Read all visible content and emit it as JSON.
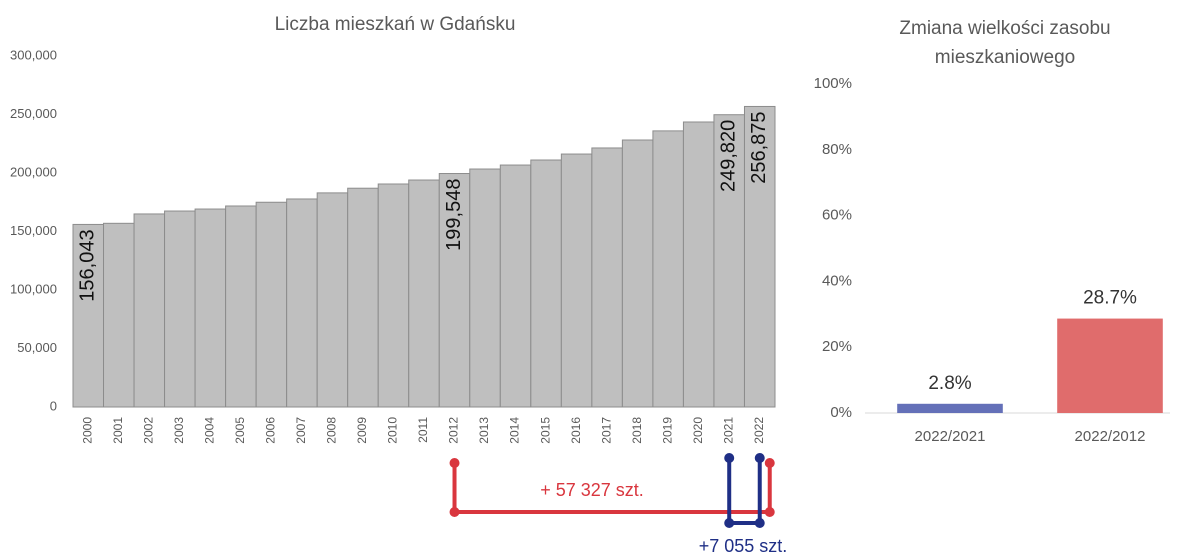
{
  "chart_data": [
    {
      "type": "bar",
      "title": "Liczba mieszkań w Gdańsku",
      "categories": [
        "2000",
        "2001",
        "2002",
        "2003",
        "2004",
        "2005",
        "2006",
        "2007",
        "2008",
        "2009",
        "2010",
        "2011",
        "2012",
        "2013",
        "2014",
        "2015",
        "2016",
        "2017",
        "2018",
        "2019",
        "2020",
        "2021",
        "2022"
      ],
      "values": [
        156043,
        157000,
        165000,
        167500,
        169200,
        171800,
        175000,
        177800,
        183000,
        187000,
        190600,
        194000,
        199548,
        203400,
        206800,
        211100,
        216200,
        221400,
        228200,
        236000,
        243600,
        249820,
        256875
      ],
      "value_labels": [
        "156,043",
        null,
        null,
        null,
        null,
        null,
        null,
        null,
        null,
        null,
        null,
        null,
        "199,548",
        null,
        null,
        null,
        null,
        null,
        null,
        null,
        null,
        "249,820",
        "256,875"
      ],
      "color": "#bfbfbf",
      "ylim": [
        0,
        300000
      ],
      "yticks": [
        0,
        {
          "value": 50000,
          "label": "50,000"
        },
        {
          "value": 100000,
          "label": "100,000"
        },
        {
          "value": 150000,
          "label": "150,000"
        },
        {
          "value": 200000,
          "label": "200,000"
        },
        {
          "value": 250000,
          "label": "250,000"
        },
        {
          "value": 300000,
          "label": "300,000"
        }
      ],
      "annotations": [
        {
          "text": "+ 57 327 szt.",
          "color": "#d9363e"
        },
        {
          "text": "+7 055 szt.",
          "color": "#1f2f86"
        }
      ]
    },
    {
      "type": "bar",
      "title": "Zmiana wielkości zasobu mieszkaniowego",
      "categories": [
        "2022/2021",
        "2022/2012"
      ],
      "values": [
        2.8,
        28.7
      ],
      "value_labels": [
        "2.8%",
        "28.7%"
      ],
      "colors": [
        "#6470b8",
        "#e06c6c"
      ],
      "ylim": [
        0,
        100
      ],
      "yticks": [
        {
          "value": 0,
          "label": "0%"
        },
        {
          "value": 20,
          "label": "20%"
        },
        {
          "value": 40,
          "label": "40%"
        },
        {
          "value": 60,
          "label": "60%"
        },
        {
          "value": 80,
          "label": "80%"
        },
        {
          "value": 100,
          "label": "100%"
        }
      ]
    }
  ]
}
